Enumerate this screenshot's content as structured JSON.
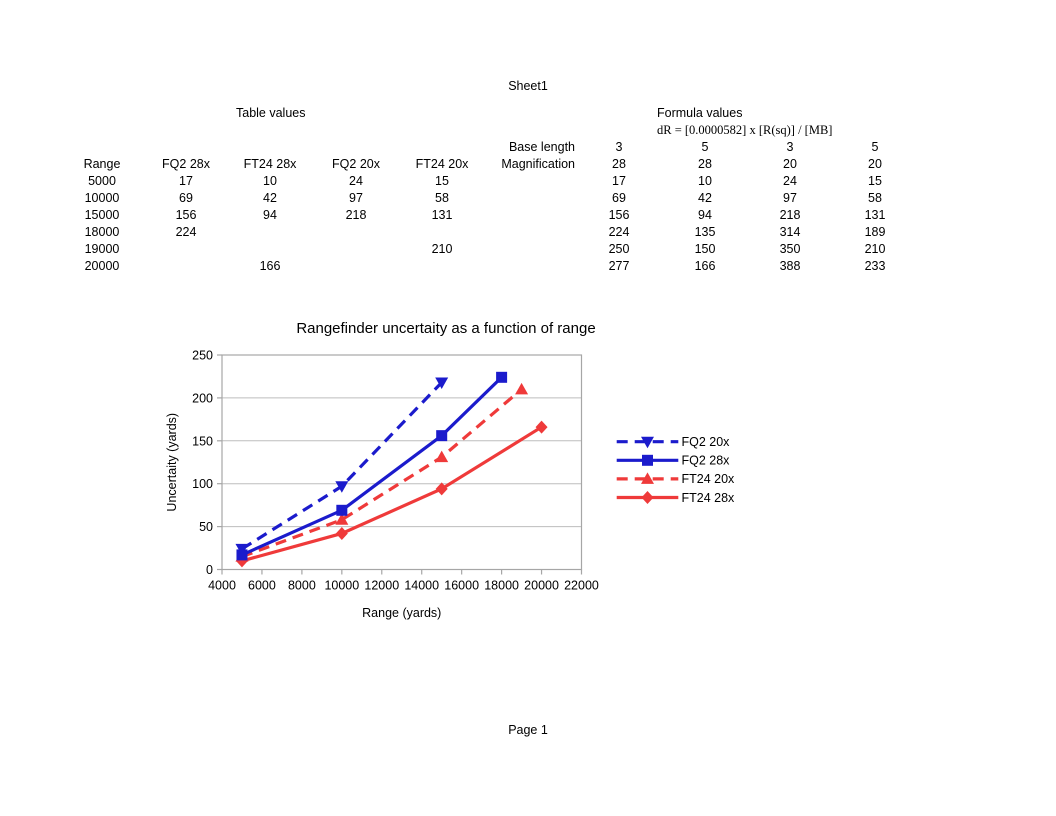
{
  "page": {
    "sheet_title": "Sheet1",
    "footer": "Page 1"
  },
  "table_values": {
    "section_title": "Table values",
    "columns": [
      "Range",
      "FQ2 28x",
      "FT24 28x",
      "FQ2 20x",
      "FT24 20x"
    ],
    "rows": [
      [
        "5000",
        "17",
        "10",
        "24",
        "15"
      ],
      [
        "10000",
        "69",
        "42",
        "97",
        "58"
      ],
      [
        "15000",
        "156",
        "94",
        "218",
        "131"
      ],
      [
        "18000",
        "224",
        "",
        "",
        ""
      ],
      [
        "19000",
        "",
        "",
        "",
        "210"
      ],
      [
        "20000",
        "",
        "166",
        "",
        ""
      ]
    ]
  },
  "formula_values": {
    "section_title": "Formula values",
    "formula": "dR = [0.0000582] x [R(sq)] / [MB]",
    "base_length_label": "Base length",
    "base_length": [
      "3",
      "5",
      "3",
      "5"
    ],
    "magnification_label": "Magnification",
    "magnification": [
      "28",
      "28",
      "20",
      "20"
    ],
    "rows": [
      [
        "17",
        "10",
        "24",
        "15"
      ],
      [
        "69",
        "42",
        "97",
        "58"
      ],
      [
        "156",
        "94",
        "218",
        "131"
      ],
      [
        "224",
        "135",
        "314",
        "189"
      ],
      [
        "250",
        "150",
        "350",
        "210"
      ],
      [
        "277",
        "166",
        "388",
        "233"
      ]
    ]
  },
  "chart_data": {
    "type": "line",
    "title": "Rangefinder uncertaity as a function of range",
    "xlabel": "Range (yards)",
    "ylabel": "Uncertaity (yards)",
    "xlim": [
      4000,
      22000
    ],
    "ylim": [
      0,
      250
    ],
    "x_ticks": [
      4000,
      6000,
      8000,
      10000,
      12000,
      14000,
      16000,
      18000,
      20000,
      22000
    ],
    "y_ticks": [
      0,
      50,
      100,
      150,
      200,
      250
    ],
    "grid": "horizontal",
    "legend_position": "right",
    "grid_color": "#bdbdbd",
    "axis_color": "#a6a6a6",
    "series": [
      {
        "name": "FQ2 20x",
        "color": "#1b1bcc",
        "dashed": true,
        "marker": "triangle-down",
        "points": [
          [
            5000,
            24
          ],
          [
            10000,
            97
          ],
          [
            15000,
            218
          ]
        ]
      },
      {
        "name": "FQ2 28x",
        "color": "#1b1bcc",
        "dashed": false,
        "marker": "square",
        "points": [
          [
            5000,
            17
          ],
          [
            10000,
            69
          ],
          [
            15000,
            156
          ],
          [
            18000,
            224
          ]
        ]
      },
      {
        "name": "FT24 20x",
        "color": "#ef3a3a",
        "dashed": true,
        "marker": "triangle-up",
        "points": [
          [
            5000,
            15
          ],
          [
            10000,
            58
          ],
          [
            15000,
            131
          ],
          [
            19000,
            210
          ]
        ]
      },
      {
        "name": "FT24 28x",
        "color": "#ef3a3a",
        "dashed": false,
        "marker": "diamond",
        "points": [
          [
            5000,
            10
          ],
          [
            10000,
            42
          ],
          [
            15000,
            94
          ],
          [
            20000,
            166
          ]
        ]
      }
    ]
  }
}
